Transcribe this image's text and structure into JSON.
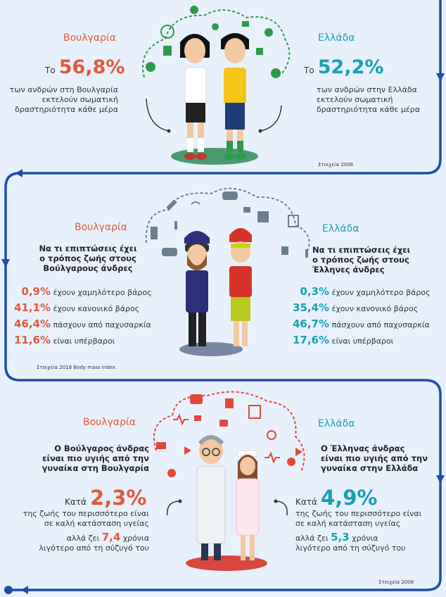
{
  "section1": {
    "bg_country": "Βουλγαρία",
    "bg_prefix": "Το",
    "bg_value": "56,8%",
    "bg_text": [
      "των ανδρών στη Βουλγαρία",
      "εκτελούν σωματική",
      "δραστηριότητα κάθε μέρα"
    ],
    "gr_country": "Ελλάδα",
    "gr_prefix": "Το",
    "gr_value": "52,2%",
    "gr_text": [
      "των ανδρών στην Ελλάδα",
      "εκτελούν σωματική",
      "δραστηριότητα κάθε μέρα"
    ],
    "source": "Στοιχεία 2008"
  },
  "section2": {
    "bg_country": "Βουλγαρία",
    "bg_heading": [
      "Να τι επιπτώσεις έχει",
      "ο τρόπος ζωής στους",
      "Βούλγαρους άνδρες"
    ],
    "bg_stats": [
      {
        "value": "0,9%",
        "label": "έχουν χαμηλότερο βάρος"
      },
      {
        "value": "41,1%",
        "label": "έχουν κανονικό βάρος"
      },
      {
        "value": "46,4%",
        "label": "πάσχουν από παχυσαρκία"
      },
      {
        "value": "11,6%",
        "label": "είναι υπέρβαροι"
      }
    ],
    "gr_country": "Ελλάδα",
    "gr_heading": [
      "Να τι επιπτώσεις έχει",
      "ο τρόπος ζωής στους",
      "Έλληνες άνδρες"
    ],
    "gr_stats": [
      {
        "value": "0,3%",
        "label": "έχουν χαμηλότερο βάρος"
      },
      {
        "value": "35,4%",
        "label": "έχουν κανονικό βάρος"
      },
      {
        "value": "46,7%",
        "label": "πάσχουν από παχυσαρκία"
      },
      {
        "value": "17,6%",
        "label": "είναι υπέρβαροι"
      }
    ],
    "source": "Στοιχεία 2018 Body mass index"
  },
  "section3": {
    "bg_country": "Βουλγαρία",
    "bg_heading": [
      "Ο Βούλγαρος άνδρας",
      "είναι πιο υγιής από την",
      "γυναίκα στη Βουλγαρία"
    ],
    "bg_prefix": "Κατά",
    "bg_value": "2,3%",
    "bg_text": [
      "της ζωής του περισσότερο είναι",
      "σε καλή κατάσταση υγείας"
    ],
    "bg_life_prefix": "αλλά ζει",
    "bg_life_value": "7,4",
    "bg_life_suffix": "χρόνια",
    "bg_life_text": "λιγότερο από τη σύζυγό του",
    "gr_country": "Ελλάδα",
    "gr_heading": [
      "Ο Έλληνας άνδρας",
      "είναι πιο υγιής από την",
      "γυναίκα στην Ελλάδα"
    ],
    "gr_prefix": "Κατά",
    "gr_value": "4,9%",
    "gr_text": [
      "της ζωής του περισσότερο είναι",
      "σε καλή κατάσταση υγείας"
    ],
    "gr_life_prefix": "αλλά ζει",
    "gr_life_value": "5,3",
    "gr_life_suffix": "χρόνια",
    "gr_life_text": "λιγότερο από τη σύζυγό του",
    "source": "Στοιχεία 2008"
  },
  "colors": {
    "bulgaria": "#e25a3a",
    "greece": "#19a0b4",
    "path": "#1f4ea8",
    "sport_icons": "#2d9a4b",
    "lifestyle_icons": "#6b7f90",
    "health_icons": "#e2473a"
  }
}
